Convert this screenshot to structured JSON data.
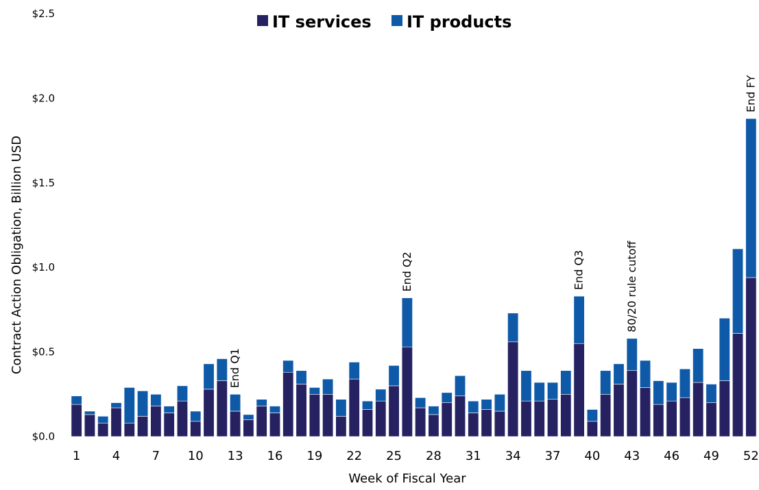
{
  "chart_data": {
    "type": "bar",
    "stacked": true,
    "xlabel": "Week of Fiscal Year",
    "ylabel": "Contract Action Obligation, Billion USD",
    "ylim": [
      0,
      2.5
    ],
    "y_ticks": [
      "$0.0",
      "$0.5",
      "$1.0",
      "$1.5",
      "$2.0",
      "$2.5"
    ],
    "y_tick_values": [
      0,
      0.5,
      1.0,
      1.5,
      2.0,
      2.5
    ],
    "x_tick_labels": [
      "1",
      "4",
      "7",
      "10",
      "13",
      "16",
      "19",
      "22",
      "25",
      "28",
      "31",
      "34",
      "37",
      "40",
      "43",
      "46",
      "49",
      "52"
    ],
    "x_tick_weeks": [
      1,
      4,
      7,
      10,
      13,
      16,
      19,
      22,
      25,
      28,
      31,
      34,
      37,
      40,
      43,
      46,
      49,
      52
    ],
    "legend_position": "top-center",
    "grid": false,
    "weeks": [
      1,
      2,
      3,
      4,
      5,
      6,
      7,
      8,
      9,
      10,
      11,
      12,
      13,
      14,
      15,
      16,
      17,
      18,
      19,
      20,
      21,
      22,
      23,
      24,
      25,
      26,
      27,
      28,
      29,
      30,
      31,
      32,
      33,
      34,
      35,
      36,
      37,
      38,
      39,
      40,
      41,
      42,
      43,
      44,
      45,
      46,
      47,
      48,
      49,
      50,
      51,
      52
    ],
    "series": [
      {
        "name": "IT services",
        "color": "#262262",
        "values": [
          0.19,
          0.13,
          0.08,
          0.17,
          0.08,
          0.12,
          0.18,
          0.14,
          0.21,
          0.09,
          0.28,
          0.33,
          0.15,
          0.1,
          0.18,
          0.14,
          0.38,
          0.31,
          0.25,
          0.25,
          0.12,
          0.34,
          0.16,
          0.21,
          0.3,
          0.53,
          0.17,
          0.13,
          0.2,
          0.24,
          0.14,
          0.16,
          0.15,
          0.56,
          0.21,
          0.21,
          0.22,
          0.25,
          0.55,
          0.09,
          0.25,
          0.31,
          0.39,
          0.29,
          0.19,
          0.21,
          0.23,
          0.32,
          0.2,
          0.33,
          0.61,
          0.94
        ]
      },
      {
        "name": "IT products",
        "color": "#0f5aa8",
        "values": [
          0.05,
          0.02,
          0.04,
          0.03,
          0.21,
          0.15,
          0.07,
          0.04,
          0.09,
          0.06,
          0.15,
          0.13,
          0.1,
          0.03,
          0.04,
          0.04,
          0.07,
          0.08,
          0.04,
          0.09,
          0.1,
          0.1,
          0.05,
          0.07,
          0.12,
          0.29,
          0.06,
          0.05,
          0.06,
          0.12,
          0.07,
          0.06,
          0.1,
          0.17,
          0.18,
          0.11,
          0.1,
          0.14,
          0.28,
          0.07,
          0.14,
          0.12,
          0.19,
          0.16,
          0.14,
          0.11,
          0.17,
          0.2,
          0.11,
          0.37,
          0.5,
          0.94
        ]
      }
    ],
    "annotations": [
      {
        "text": "End Q1",
        "week": 13
      },
      {
        "text": "End Q2",
        "week": 26
      },
      {
        "text": "End Q3",
        "week": 39
      },
      {
        "text": "80/20 rule cutoff",
        "week": 43
      },
      {
        "text": "End FY",
        "week": 52
      }
    ]
  }
}
